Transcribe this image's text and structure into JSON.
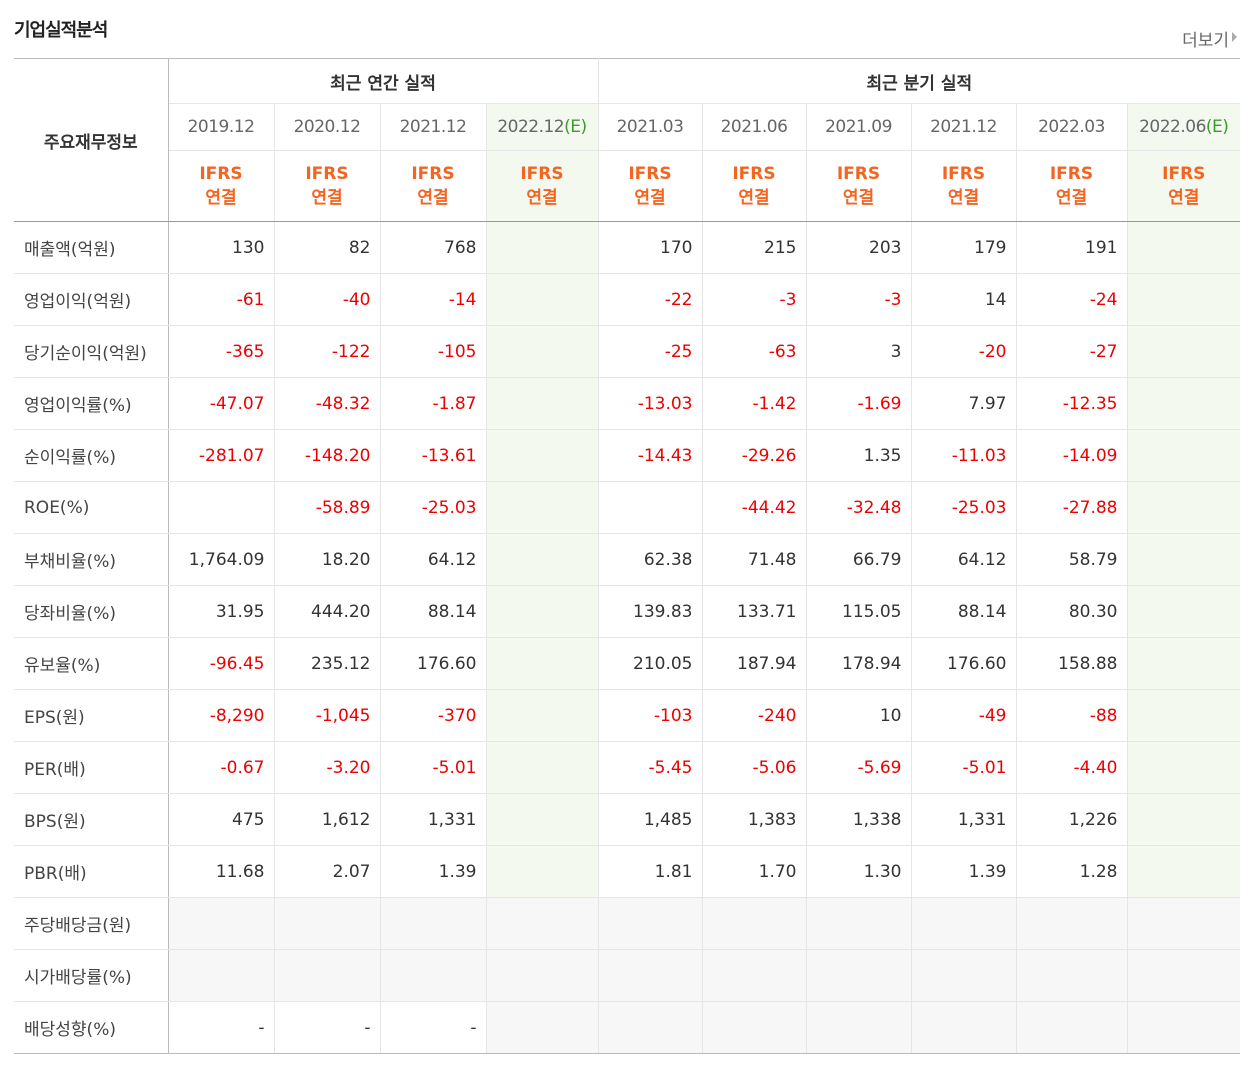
{
  "header": {
    "title": "기업실적분석",
    "more": "더보기"
  },
  "table": {
    "corner": "주요재무정보",
    "groups": [
      {
        "title": "최근 연간 실적",
        "columns": [
          {
            "period": "2019.12",
            "basis": "IFRS 연결"
          },
          {
            "period": "2020.12",
            "basis": "IFRS 연결"
          },
          {
            "period": "2021.12",
            "basis": "IFRS 연결"
          },
          {
            "period": "2022.12",
            "estimate": "(E)",
            "basis": "IFRS 연결"
          }
        ]
      },
      {
        "title": "최근 분기 실적",
        "columns": [
          {
            "period": "2021.03",
            "basis": "IFRS 연결"
          },
          {
            "period": "2021.06",
            "basis": "IFRS 연결"
          },
          {
            "period": "2021.09",
            "basis": "IFRS 연결"
          },
          {
            "period": "2021.12",
            "basis": "IFRS 연결"
          },
          {
            "period": "2022.03",
            "basis": "IFRS 연결"
          },
          {
            "period": "2022.06",
            "estimate": "(E)",
            "basis": "IFRS 연결"
          }
        ]
      }
    ],
    "rows": [
      {
        "label": "매출액(억원)",
        "values": [
          "130",
          "82",
          "768",
          null,
          "170",
          "215",
          "203",
          "179",
          "191",
          null
        ]
      },
      {
        "label": "영업이익(억원)",
        "values": [
          "-61",
          "-40",
          "-14",
          null,
          "-22",
          "-3",
          "-3",
          "14",
          "-24",
          null
        ]
      },
      {
        "label": "당기순이익(억원)",
        "values": [
          "-365",
          "-122",
          "-105",
          null,
          "-25",
          "-63",
          "3",
          "-20",
          "-27",
          null
        ]
      },
      {
        "label": "영업이익률(%)",
        "values": [
          "-47.07",
          "-48.32",
          "-1.87",
          null,
          "-13.03",
          "-1.42",
          "-1.69",
          "7.97",
          "-12.35",
          null
        ]
      },
      {
        "label": "순이익률(%)",
        "values": [
          "-281.07",
          "-148.20",
          "-13.61",
          null,
          "-14.43",
          "-29.26",
          "1.35",
          "-11.03",
          "-14.09",
          null
        ]
      },
      {
        "label": "ROE(%)",
        "values": [
          null,
          "-58.89",
          "-25.03",
          null,
          null,
          "-44.42",
          "-32.48",
          "-25.03",
          "-27.88",
          null
        ]
      },
      {
        "label": "부채비율(%)",
        "values": [
          "1,764.09",
          "18.20",
          "64.12",
          null,
          "62.38",
          "71.48",
          "66.79",
          "64.12",
          "58.79",
          null
        ]
      },
      {
        "label": "당좌비율(%)",
        "values": [
          "31.95",
          "444.20",
          "88.14",
          null,
          "139.83",
          "133.71",
          "115.05",
          "88.14",
          "80.30",
          null
        ]
      },
      {
        "label": "유보율(%)",
        "values": [
          "-96.45",
          "235.12",
          "176.60",
          null,
          "210.05",
          "187.94",
          "178.94",
          "176.60",
          "158.88",
          null
        ]
      },
      {
        "label": "EPS(원)",
        "values": [
          "-8,290",
          "-1,045",
          "-370",
          null,
          "-103",
          "-240",
          "10",
          "-49",
          "-88",
          null
        ]
      },
      {
        "label": "PER(배)",
        "values": [
          "-0.67",
          "-3.20",
          "-5.01",
          null,
          "-5.45",
          "-5.06",
          "-5.69",
          "-5.01",
          "-4.40",
          null
        ]
      },
      {
        "label": "BPS(원)",
        "values": [
          "475",
          "1,612",
          "1,331",
          null,
          "1,485",
          "1,383",
          "1,338",
          "1,331",
          "1,226",
          null
        ]
      },
      {
        "label": "PBR(배)",
        "values": [
          "11.68",
          "2.07",
          "1.39",
          null,
          "1.81",
          "1.70",
          "1.30",
          "1.39",
          "1.28",
          null
        ]
      },
      {
        "label": "주당배당금(원)",
        "values": [
          null,
          null,
          null,
          null,
          null,
          null,
          null,
          null,
          null,
          null
        ]
      },
      {
        "label": "시가배당률(%)",
        "values": [
          null,
          null,
          null,
          null,
          null,
          null,
          null,
          null,
          null,
          null
        ]
      },
      {
        "label": "배당성향(%)",
        "values": [
          "-",
          "-",
          "-",
          null,
          null,
          null,
          null,
          null,
          null,
          null
        ]
      }
    ]
  }
}
